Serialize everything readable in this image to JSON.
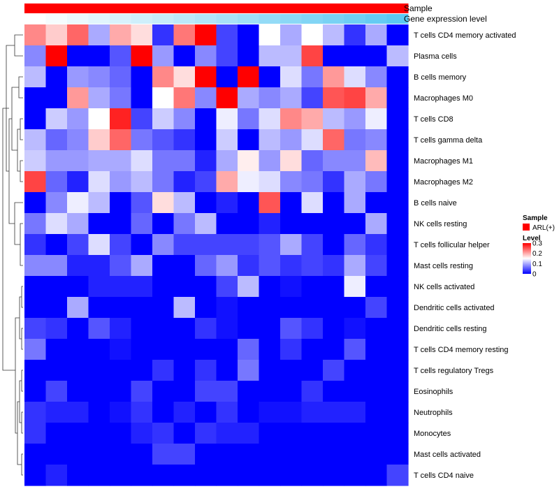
{
  "chart_data": {
    "type": "heatmap",
    "annotation_tracks": [
      {
        "name": "Sample",
        "kind": "categorical",
        "values": [
          "ARL(+)",
          "ARL(+)",
          "ARL(+)",
          "ARL(+)",
          "ARL(+)",
          "ARL(+)",
          "ARL(+)",
          "ARL(+)",
          "ARL(+)",
          "ARL(+)",
          "ARL(+)",
          "ARL(+)",
          "ARL(+)",
          "ARL(+)",
          "ARL(+)",
          "ARL(+)",
          "ARL(+)",
          "ARL(+)"
        ]
      },
      {
        "name": "Gene expression level",
        "kind": "continuous",
        "values": [
          0.0,
          0.06,
          0.12,
          0.18,
          0.24,
          0.29,
          0.35,
          0.41,
          0.47,
          0.53,
          0.59,
          0.65,
          0.71,
          0.76,
          0.82,
          0.88,
          0.94,
          1.0
        ]
      }
    ],
    "rows": [
      "T cells CD4 memory activated",
      "Plasma cells",
      "B cells memory",
      "Macrophages M0",
      "T cells CD8",
      "T cells gamma delta",
      "Macrophages M1",
      "Macrophages M2",
      "B cells naive",
      "NK cells resting",
      "T cells follicular helper",
      "Mast cells resting",
      "NK cells activated",
      "Dendritic cells activated",
      "Dendritic cells resting",
      "T cells CD4 memory resting",
      "T cells regulatory  Tregs",
      "Eosinophils",
      "Neutrophils",
      "Monocytes",
      "Mast cells activated",
      "T cells CD4 naive"
    ],
    "values": [
      [
        0.22,
        0.18,
        0.24,
        0.1,
        0.2,
        0.17,
        0.03,
        0.23,
        0.3,
        0.04,
        0.0,
        0.15,
        0.1,
        0.15,
        0.11,
        0.03,
        0.1,
        0.0
      ],
      [
        0.08,
        0.3,
        0.0,
        0.0,
        0.05,
        0.3,
        0.09,
        0.0,
        0.08,
        0.04,
        0.0,
        0.11,
        0.11,
        0.26,
        0.0,
        0.0,
        0.0,
        0.11
      ],
      [
        0.11,
        0.0,
        0.09,
        0.08,
        0.06,
        0.0,
        0.22,
        0.17,
        0.3,
        0.0,
        0.3,
        0.0,
        0.13,
        0.07,
        0.21,
        0.13,
        0.08,
        0.0
      ],
      [
        0.0,
        0.0,
        0.21,
        0.1,
        0.07,
        0.0,
        0.15,
        0.23,
        0.08,
        0.3,
        0.1,
        0.08,
        0.1,
        0.04,
        0.25,
        0.26,
        0.2,
        0.0
      ],
      [
        0.0,
        0.12,
        0.09,
        0.15,
        0.28,
        0.04,
        0.12,
        0.08,
        0.0,
        0.14,
        0.07,
        0.13,
        0.22,
        0.2,
        0.11,
        0.09,
        0.14,
        0.0
      ],
      [
        0.11,
        0.06,
        0.08,
        0.18,
        0.24,
        0.07,
        0.05,
        0.03,
        0.0,
        0.12,
        0.0,
        0.11,
        0.09,
        0.13,
        0.24,
        0.07,
        0.08,
        0.0
      ],
      [
        0.12,
        0.09,
        0.09,
        0.1,
        0.1,
        0.13,
        0.07,
        0.07,
        0.02,
        0.1,
        0.16,
        0.09,
        0.17,
        0.06,
        0.08,
        0.08,
        0.19,
        0.0
      ],
      [
        0.26,
        0.06,
        0.02,
        0.13,
        0.09,
        0.11,
        0.07,
        0.02,
        0.04,
        0.2,
        0.14,
        0.13,
        0.08,
        0.07,
        0.03,
        0.1,
        0.07,
        0.0
      ],
      [
        0.0,
        0.08,
        0.14,
        0.11,
        0.0,
        0.05,
        0.17,
        0.11,
        0.0,
        0.02,
        0.0,
        0.25,
        0.0,
        0.13,
        0.0,
        0.1,
        0.0,
        0.0
      ],
      [
        0.07,
        0.13,
        0.1,
        0.0,
        0.0,
        0.06,
        0.0,
        0.07,
        0.11,
        0.0,
        0.0,
        0.02,
        0.0,
        0.0,
        0.0,
        0.0,
        0.1,
        0.0
      ],
      [
        0.03,
        0.0,
        0.04,
        0.13,
        0.04,
        0.0,
        0.08,
        0.04,
        0.04,
        0.04,
        0.04,
        0.05,
        0.1,
        0.04,
        0.0,
        0.06,
        0.03,
        0.0
      ],
      [
        0.08,
        0.08,
        0.02,
        0.02,
        0.05,
        0.1,
        0.0,
        0.0,
        0.06,
        0.09,
        0.03,
        0.05,
        0.03,
        0.04,
        0.03,
        0.1,
        0.04,
        0.0
      ],
      [
        0.0,
        0.0,
        0.0,
        0.02,
        0.02,
        0.02,
        0.0,
        0.0,
        0.0,
        0.04,
        0.11,
        0.0,
        0.01,
        0.0,
        0.0,
        0.14,
        0.0,
        0.0
      ],
      [
        0.0,
        0.0,
        0.1,
        0.0,
        0.0,
        0.0,
        0.0,
        0.11,
        0.0,
        0.01,
        0.0,
        0.0,
        0.0,
        0.0,
        0.0,
        0.0,
        0.04,
        0.0
      ],
      [
        0.04,
        0.03,
        0.0,
        0.05,
        0.02,
        0.0,
        0.0,
        0.0,
        0.03,
        0.01,
        0.0,
        0.0,
        0.05,
        0.03,
        0.0,
        0.01,
        0.0,
        0.0
      ],
      [
        0.07,
        0.0,
        0.0,
        0.0,
        0.01,
        0.0,
        0.0,
        0.0,
        0.0,
        0.0,
        0.06,
        0.0,
        0.03,
        0.0,
        0.0,
        0.05,
        0.0,
        0.0
      ],
      [
        0.0,
        0.0,
        0.0,
        0.0,
        0.0,
        0.0,
        0.03,
        0.0,
        0.03,
        0.0,
        0.07,
        0.0,
        0.0,
        0.0,
        0.04,
        0.0,
        0.0,
        0.0
      ],
      [
        0.0,
        0.04,
        0.0,
        0.0,
        0.0,
        0.04,
        0.0,
        0.0,
        0.04,
        0.04,
        0.0,
        0.0,
        0.0,
        0.03,
        0.0,
        0.0,
        0.0,
        0.0
      ],
      [
        0.03,
        0.02,
        0.02,
        0.0,
        0.01,
        0.03,
        0.0,
        0.02,
        0.0,
        0.03,
        0.0,
        0.01,
        0.01,
        0.02,
        0.02,
        0.02,
        0.0,
        0.0
      ],
      [
        0.03,
        0.0,
        0.0,
        0.0,
        0.0,
        0.02,
        0.03,
        0.0,
        0.03,
        0.02,
        0.02,
        0.0,
        0.0,
        0.0,
        0.0,
        0.0,
        0.0,
        0.0
      ],
      [
        0.0,
        0.0,
        0.0,
        0.0,
        0.0,
        0.0,
        0.04,
        0.04,
        0.0,
        0.0,
        0.0,
        0.0,
        0.0,
        0.0,
        0.0,
        0.0,
        0.0,
        0.0
      ],
      [
        0.0,
        0.02,
        0.0,
        0.0,
        0.0,
        0.0,
        0.0,
        0.0,
        0.0,
        0.0,
        0.0,
        0.0,
        0.0,
        0.0,
        0.0,
        0.0,
        0.0,
        0.04
      ]
    ],
    "color_scale": {
      "min": 0,
      "mid": 0.15,
      "max": 0.3,
      "colors": [
        "#0000ff",
        "#ffffff",
        "#ff0000"
      ]
    },
    "legend": {
      "sample_title": "Sample",
      "sample_label": "ARL(+)",
      "sample_color": "#ff0000",
      "level_title": "Level",
      "level_ticks": [
        "0.3",
        "0.2",
        "0.1",
        "0"
      ],
      "position": "right"
    },
    "track_colors": {
      "expression_low": "#ffffff",
      "expression_high": "#5bc8f2"
    },
    "row_dendrogram": true
  }
}
